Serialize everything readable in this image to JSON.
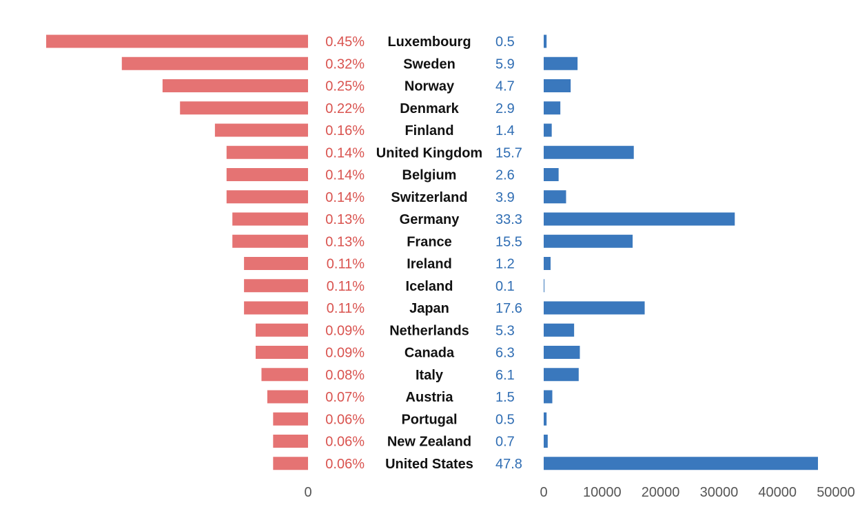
{
  "colors": {
    "left_bar": "#e57373",
    "left_text": "#d9534f",
    "right_bar": "#3a78bd",
    "right_text": "#2f6db3",
    "label_text": "#111111",
    "tick_text": "#555555"
  },
  "chart_data": [
    {
      "type": "bar",
      "orientation": "horizontal",
      "direction": "leftward",
      "categories": [
        "Luxembourg",
        "Sweden",
        "Norway",
        "Denmark",
        "Finland",
        "United Kingdom",
        "Belgium",
        "Switzerland",
        "Germany",
        "France",
        "Ireland",
        "Iceland",
        "Japan",
        "Netherlands",
        "Canada",
        "Italy",
        "Austria",
        "Portugal",
        "New Zealand",
        "United States"
      ],
      "values": [
        0.45,
        0.32,
        0.25,
        0.22,
        0.16,
        0.14,
        0.14,
        0.14,
        0.13,
        0.13,
        0.11,
        0.11,
        0.11,
        0.09,
        0.09,
        0.08,
        0.07,
        0.06,
        0.06,
        0.06
      ],
      "data_labels": [
        "0.45%",
        "0.32%",
        "0.25%",
        "0.22%",
        "0.16%",
        "0.14%",
        "0.14%",
        "0.14%",
        "0.13%",
        "0.13%",
        "0.11%",
        "0.11%",
        "0.11%",
        "0.09%",
        "0.09%",
        "0.08%",
        "0.07%",
        "0.06%",
        "0.06%",
        "0.06%"
      ],
      "xlim": [
        0,
        0.46
      ],
      "xticks": [
        "0"
      ],
      "grid": false
    },
    {
      "type": "bar",
      "orientation": "horizontal",
      "categories": [
        "Luxembourg",
        "Sweden",
        "Norway",
        "Denmark",
        "Finland",
        "United Kingdom",
        "Belgium",
        "Switzerland",
        "Germany",
        "France",
        "Ireland",
        "Iceland",
        "Japan",
        "Netherlands",
        "Canada",
        "Italy",
        "Austria",
        "Portugal",
        "New Zealand",
        "United States"
      ],
      "values": [
        500,
        5900,
        4700,
        2900,
        1400,
        15700,
        2600,
        3900,
        33300,
        15500,
        1200,
        100,
        17600,
        5300,
        6300,
        6100,
        1500,
        500,
        700,
        47800
      ],
      "data_labels": [
        "0.5",
        "5.9",
        "4.7",
        "2.9",
        "1.4",
        "15.7",
        "2.6",
        "3.9",
        "33.3",
        "15.5",
        "1.2",
        "0.1",
        "17.6",
        "5.3",
        "6.3",
        "6.1",
        "1.5",
        "0.5",
        "0.7",
        "47.8"
      ],
      "xlim": [
        0,
        50000
      ],
      "xticks": [
        "0",
        "10000",
        "20000",
        "30000",
        "40000",
        "50000"
      ],
      "grid": false
    }
  ]
}
